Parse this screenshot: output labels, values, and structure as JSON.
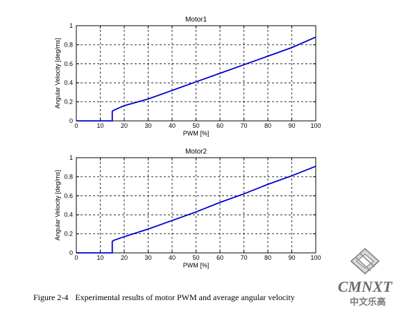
{
  "chart_data": [
    {
      "type": "line",
      "title": "Motor1",
      "xlabel": "PWM [%]",
      "ylabel": "Angular Velocity [deg/ms]",
      "xlim": [
        0,
        100
      ],
      "ylim": [
        0,
        1
      ],
      "xticks": [
        "0",
        "10",
        "20",
        "30",
        "40",
        "50",
        "60",
        "70",
        "80",
        "90",
        "100"
      ],
      "yticks": [
        "0",
        "0.2",
        "0.4",
        "0.6",
        "0.8",
        "1"
      ],
      "grid": true,
      "line_color": "#0000cc",
      "x": [
        0,
        15,
        15,
        15.5,
        20,
        30,
        40,
        50,
        60,
        70,
        80,
        90,
        100
      ],
      "y": [
        0,
        0,
        0.1,
        0.11,
        0.16,
        0.23,
        0.32,
        0.41,
        0.5,
        0.59,
        0.68,
        0.77,
        0.88
      ]
    },
    {
      "type": "line",
      "title": "Motor2",
      "xlabel": "PWM [%]",
      "ylabel": "Angular Velocity [deg/ms]",
      "xlim": [
        0,
        100
      ],
      "ylim": [
        0,
        1
      ],
      "xticks": [
        "0",
        "10",
        "20",
        "30",
        "40",
        "50",
        "60",
        "70",
        "80",
        "90",
        "100"
      ],
      "yticks": [
        "0",
        "0.2",
        "0.4",
        "0.6",
        "0.8",
        "1"
      ],
      "grid": true,
      "line_color": "#0000cc",
      "x": [
        0,
        15,
        15,
        15.5,
        20,
        30,
        40,
        50,
        60,
        70,
        80,
        90,
        100
      ],
      "y": [
        0,
        0,
        0.12,
        0.13,
        0.17,
        0.25,
        0.34,
        0.43,
        0.53,
        0.62,
        0.72,
        0.81,
        0.91
      ]
    }
  ],
  "caption": {
    "number": "Figure 2-4",
    "text": "Experimental results of motor PWM and average angular velocity"
  },
  "watermark": {
    "word": "CMNXT",
    "cn": "中文乐高"
  }
}
